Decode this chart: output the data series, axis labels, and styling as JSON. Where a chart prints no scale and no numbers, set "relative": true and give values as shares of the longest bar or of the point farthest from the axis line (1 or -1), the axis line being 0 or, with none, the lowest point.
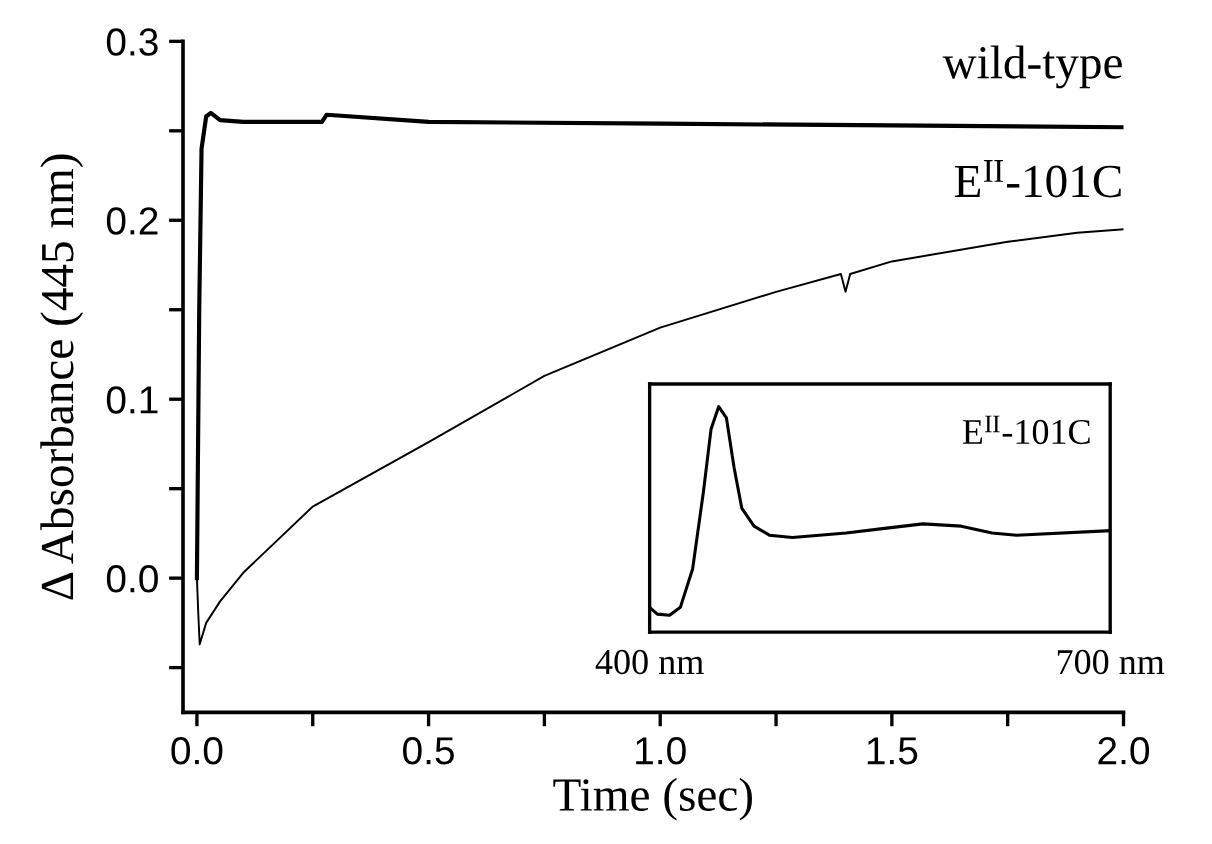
{
  "chart_data": [
    {
      "type": "line",
      "xlabel": "Time (sec)",
      "ylabel": "Δ Absorbance (445 nm)",
      "xlim": [
        -0.03,
        2.0
      ],
      "ylim": [
        -0.075,
        0.3
      ],
      "xticks": [
        {
          "value": 0,
          "label": "0.0"
        },
        {
          "value": 0.25,
          "label": null
        },
        0.5,
        {
          "value": 0.75,
          "label": null
        },
        {
          "value": 1,
          "label": "1.0"
        },
        {
          "value": 1.25,
          "label": null
        },
        1.5,
        {
          "value": 1.75,
          "label": null
        },
        {
          "value": 2,
          "label": "2.0"
        }
      ],
      "yticks": [
        {
          "value": -0.05,
          "label": null
        },
        {
          "value": 0,
          "label": "0.0"
        },
        {
          "value": 0.05,
          "label": null
        },
        0.1,
        {
          "value": 0.15,
          "label": null
        },
        0.2,
        {
          "value": 0.25,
          "label": null
        },
        0.3
      ],
      "grid": false,
      "legend": false,
      "line_style": "solid",
      "marker": "none",
      "series": [
        {
          "name": "wild-type",
          "color": "#000000",
          "x": [
            0,
            0.005,
            0.01,
            0.02,
            0.03,
            0.05,
            0.1,
            0.27,
            0.28,
            0.5,
            1.0,
            1.5,
            2.0
          ],
          "values": [
            0,
            0.15,
            0.24,
            0.258,
            0.26,
            0.256,
            0.255,
            0.255,
            0.259,
            0.255,
            0.254,
            0.253,
            0.252
          ]
        },
        {
          "name": "E$^{II}$-101C",
          "color": "#000000",
          "x": [
            0,
            0.003,
            0.006,
            0.02,
            0.05,
            0.1,
            0.25,
            0.5,
            0.75,
            1.0,
            1.25,
            1.39,
            1.4,
            1.41,
            1.5,
            1.75,
            1.9,
            2.0
          ],
          "values": [
            0,
            -0.02,
            -0.037,
            -0.025,
            -0.013,
            0.003,
            0.04,
            0.076,
            0.113,
            0.14,
            0.16,
            0.17,
            0.16,
            0.17,
            0.177,
            0.188,
            0.193,
            0.195
          ]
        }
      ]
    },
    {
      "type": "line",
      "title": "E$^{II}$-101C",
      "relative": true,
      "xlim": [
        400,
        700
      ],
      "xticks": [
        {
          "value": 400,
          "label": "400 nm"
        },
        {
          "value": 700,
          "label": "700 nm"
        }
      ],
      "tick_labels": "x",
      "grid": false,
      "legend": false,
      "line_style": "solid",
      "marker": "none",
      "series": [
        {
          "color": "#000000",
          "x": [
            400,
            405,
            413,
            420,
            428,
            435,
            440,
            445,
            450,
            455,
            460,
            468,
            478,
            493,
            528,
            553,
            578,
            603,
            623,
            639,
            700
          ],
          "values": [
            0.11,
            0.08,
            0.075,
            0.11,
            0.28,
            0.62,
            0.9,
            1.0,
            0.95,
            0.73,
            0.55,
            0.47,
            0.43,
            0.42,
            0.44,
            0.46,
            0.48,
            0.47,
            0.44,
            0.43,
            0.45
          ]
        }
      ]
    }
  ]
}
